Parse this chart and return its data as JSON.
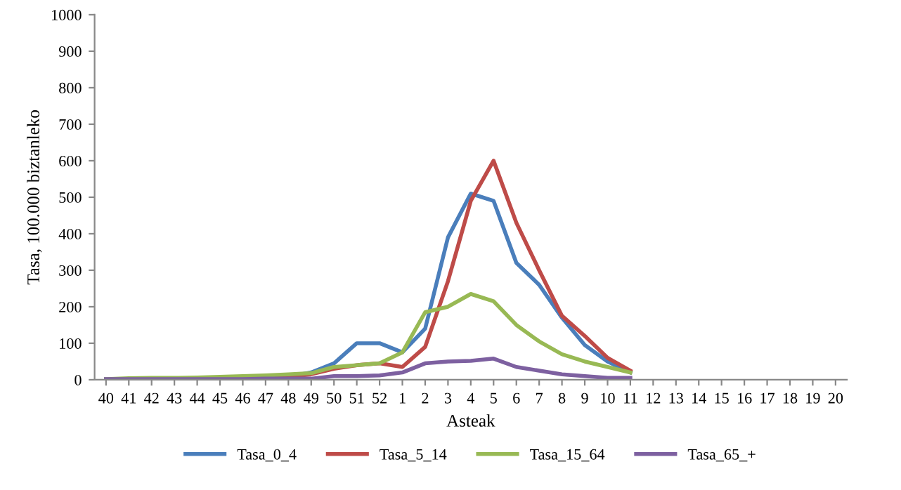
{
  "chart_data": {
    "type": "line",
    "xlabel": "Asteak",
    "ylabel": "Tasa, 100.000 biztanleko",
    "categories": [
      "40",
      "41",
      "42",
      "43",
      "44",
      "45",
      "46",
      "47",
      "48",
      "49",
      "50",
      "51",
      "52",
      "1",
      "2",
      "3",
      "4",
      "5",
      "6",
      "7",
      "8",
      "9",
      "10",
      "11",
      "12",
      "13",
      "14",
      "15",
      "16",
      "17",
      "18",
      "19",
      "20"
    ],
    "ylim": [
      0,
      1000
    ],
    "yticks": [
      0,
      100,
      200,
      300,
      400,
      500,
      600,
      700,
      800,
      900,
      1000
    ],
    "grid": false,
    "legend": "bottom",
    "marker": "none",
    "line_style": "solid",
    "series": [
      {
        "name": "Tasa_0_4",
        "color": "#4a7ebb",
        "values": [
          null,
          null,
          null,
          null,
          null,
          null,
          null,
          null,
          8,
          20,
          45,
          100,
          100,
          75,
          140,
          390,
          510,
          490,
          320,
          260,
          170,
          95,
          50,
          20,
          null,
          null,
          null,
          null,
          null,
          null,
          null,
          null,
          null
        ]
      },
      {
        "name": "Tasa_5_14",
        "color": "#be4b48",
        "values": [
          null,
          null,
          null,
          null,
          null,
          null,
          null,
          6,
          8,
          15,
          30,
          40,
          45,
          35,
          90,
          270,
          490,
          600,
          430,
          300,
          175,
          120,
          60,
          25,
          null,
          null,
          null,
          null,
          null,
          null,
          null,
          null,
          null
        ]
      },
      {
        "name": "Tasa_15_64",
        "color": "#98b954",
        "values": [
          2,
          4,
          5,
          5,
          6,
          8,
          10,
          12,
          15,
          18,
          35,
          40,
          45,
          75,
          185,
          200,
          235,
          215,
          150,
          105,
          70,
          50,
          35,
          20,
          null,
          null,
          null,
          null,
          null,
          null,
          null,
          null,
          null
        ]
      },
      {
        "name": "Tasa_65_+",
        "color": "#7d60a0",
        "values": [
          2,
          2,
          2,
          2,
          2,
          2,
          2,
          3,
          3,
          3,
          10,
          10,
          12,
          20,
          45,
          50,
          52,
          58,
          35,
          25,
          15,
          10,
          5,
          5,
          null,
          null,
          null,
          null,
          null,
          null,
          null,
          null,
          null
        ]
      }
    ]
  }
}
